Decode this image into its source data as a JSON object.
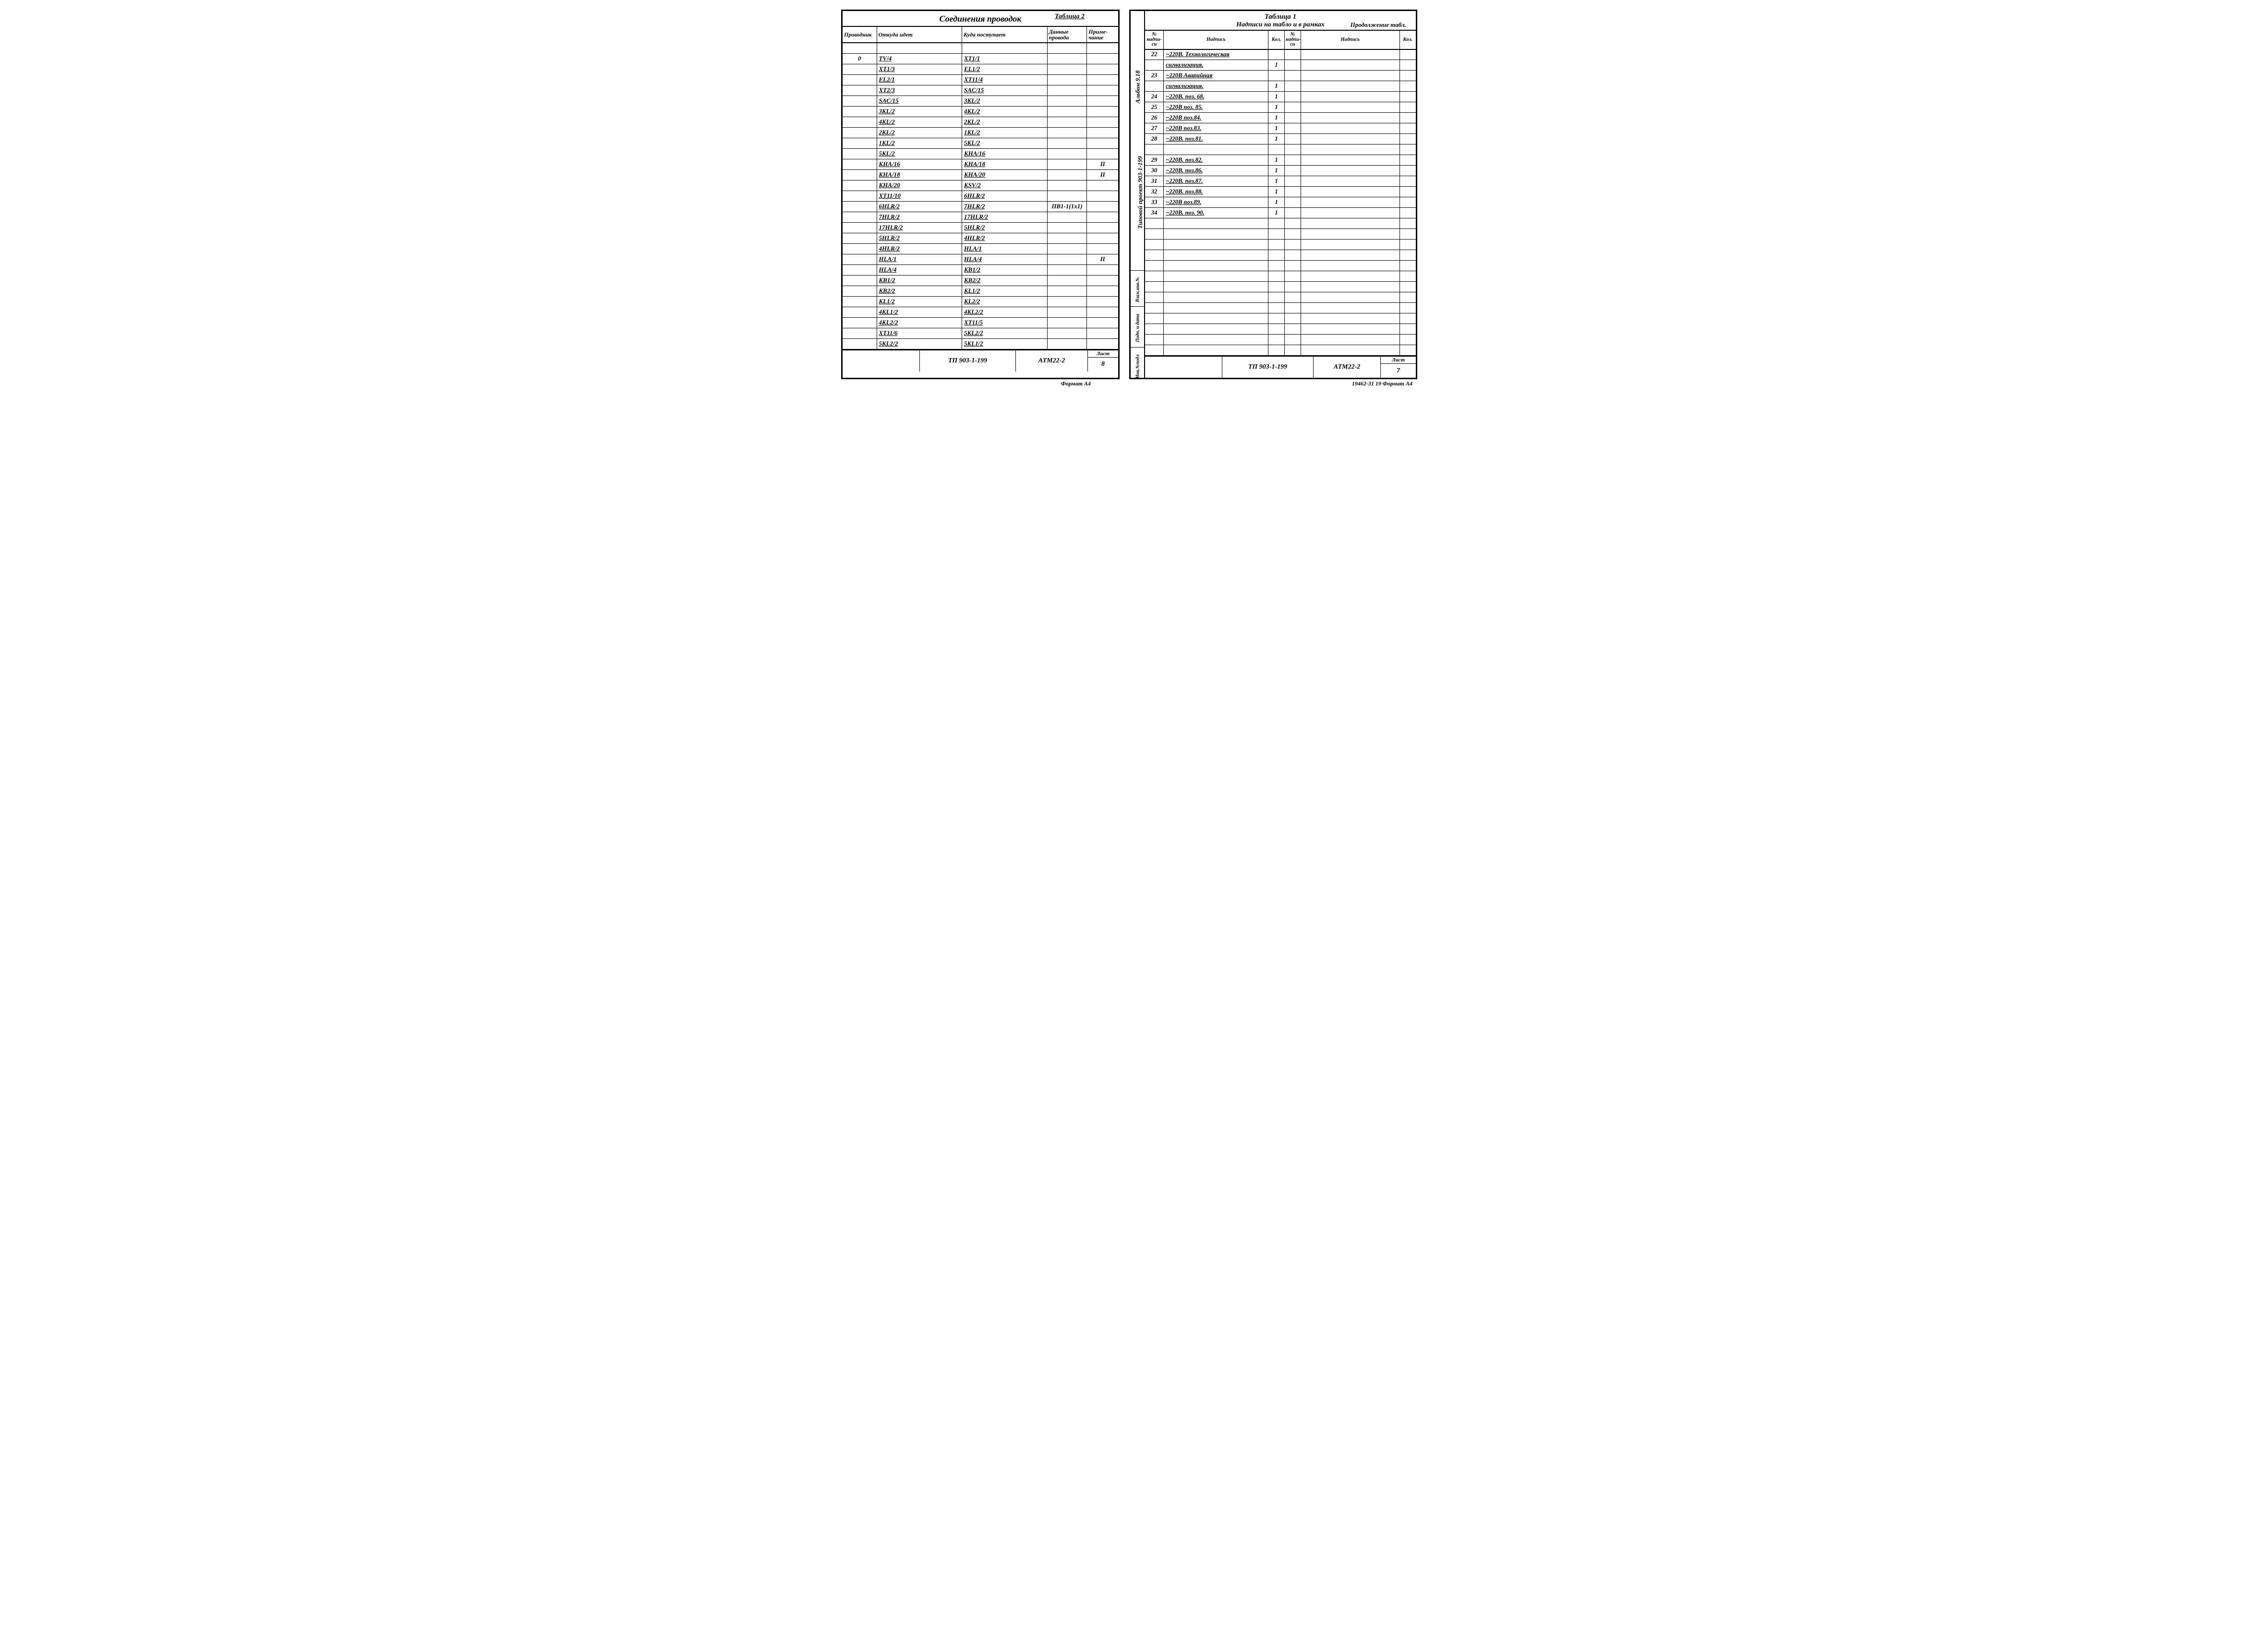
{
  "table2": {
    "tag": "Таблица 2",
    "title": "Соединения проводок",
    "headers": {
      "prov": "Проводник",
      "from": "Откуда идет",
      "to": "Куда поступает",
      "data": "Данные провода",
      "note": "Приме-чание"
    },
    "rows": [
      {
        "prov": "",
        "from": "",
        "to": "",
        "data": "",
        "note": ""
      },
      {
        "prov": "0",
        "from": "TV/4",
        "to": "XT1/1",
        "data": "",
        "note": ""
      },
      {
        "prov": "",
        "from": "XT1/3",
        "to": "EL1/2",
        "data": "",
        "note": ""
      },
      {
        "prov": "",
        "from": "EL2/1",
        "to": "XT11/4",
        "data": "",
        "note": ""
      },
      {
        "prov": "",
        "from": "XT2/3",
        "to": "SAC/15",
        "data": "",
        "note": ""
      },
      {
        "prov": "",
        "from": "SAC/15",
        "to": "3KL/2",
        "data": "",
        "note": ""
      },
      {
        "prov": "",
        "from": "3KL/2",
        "to": "4KL/2",
        "data": "",
        "note": ""
      },
      {
        "prov": "",
        "from": "4KL/2",
        "to": "2KL/2",
        "data": "",
        "note": ""
      },
      {
        "prov": "",
        "from": "2KL/2",
        "to": "1KL/2",
        "data": "",
        "note": ""
      },
      {
        "prov": "",
        "from": "1KL/2",
        "to": "5KL/2",
        "data": "",
        "note": ""
      },
      {
        "prov": "",
        "from": "5KL/2",
        "to": "KHA/16",
        "data": "",
        "note": ""
      },
      {
        "prov": "",
        "from": "KHA/16",
        "to": "KHA/18",
        "data": "",
        "note": "П"
      },
      {
        "prov": "",
        "from": "KHA/18",
        "to": "KHA/20",
        "data": "",
        "note": "П"
      },
      {
        "prov": "",
        "from": "KHA/20",
        "to": "KSV/2",
        "data": "",
        "note": ""
      },
      {
        "prov": "",
        "from": "XT11/10",
        "to": "6HLR/2",
        "data": "",
        "note": ""
      },
      {
        "prov": "",
        "from": "6HLR/2",
        "to": "7HLR/2",
        "data": "ПВ1-1(1х1)",
        "note": ""
      },
      {
        "prov": "",
        "from": "7HLR/2",
        "to": "17HLR/2",
        "data": "",
        "note": ""
      },
      {
        "prov": "",
        "from": "17HLR/2",
        "to": "5HLR/2",
        "data": "",
        "note": ""
      },
      {
        "prov": "",
        "from": "5HLR/2",
        "to": "4HLR/2",
        "data": "",
        "note": ""
      },
      {
        "prov": "",
        "from": "4HLR/2",
        "to": "HLA/1",
        "data": "",
        "note": ""
      },
      {
        "prov": "",
        "from": "HLA/1",
        "to": "HLA/4",
        "data": "",
        "note": "П"
      },
      {
        "prov": "",
        "from": "HLA/4",
        "to": "KB1/2",
        "data": "",
        "note": ""
      },
      {
        "prov": "",
        "from": "KB1/2",
        "to": "KB2/2",
        "data": "",
        "note": ""
      },
      {
        "prov": "",
        "from": "KB2/2",
        "to": "KL1/2",
        "data": "",
        "note": ""
      },
      {
        "prov": "",
        "from": "KL1/2",
        "to": "KL2/2",
        "data": "",
        "note": ""
      },
      {
        "prov": "",
        "from": "4KL1/2",
        "to": "4KL2/2",
        "data": "",
        "note": ""
      },
      {
        "prov": "",
        "from": "4KL2/2",
        "to": "XT11/5",
        "data": "",
        "note": ""
      },
      {
        "prov": "",
        "from": "XT11/6",
        "to": "5KL2/2",
        "data": "",
        "note": ""
      },
      {
        "prov": "",
        "from": "5KL2/2",
        "to": "5KL1/2",
        "data": "",
        "note": ""
      }
    ],
    "footer": {
      "tp": "ТП 903-1-199",
      "atm": "АТМ22-2",
      "listLabel": "Лист",
      "list": "8"
    },
    "format": "Формат А4"
  },
  "side": {
    "labels": [
      "Альбом 9.18",
      "Типовой проект 903-1-199",
      "Взам.инв.№",
      "Подп. и дата",
      "Инв.№подл"
    ]
  },
  "table1": {
    "tag": "Таблица 1",
    "title": "Надписи на табло и в рамках",
    "cont": "Продолжение табл.",
    "headers": {
      "no": "№ надпи-си",
      "lab": "Надпись",
      "kol": "Кол.",
      "no2": "№ надпи-си",
      "lab2": "Надпись",
      "kol2": "Кол."
    },
    "rows": [
      {
        "no": "22",
        "lab": "~220В. Технологическая",
        "kol": "",
        "no2": "",
        "lab2": "",
        "kol2": ""
      },
      {
        "no": "",
        "lab": "сигнализация.",
        "kol": "1",
        "no2": "",
        "lab2": "",
        "kol2": ""
      },
      {
        "no": "23",
        "lab": "~220В Аварийная",
        "kol": "",
        "no2": "",
        "lab2": "",
        "kol2": ""
      },
      {
        "no": "",
        "lab": "сигнализация.",
        "kol": "1",
        "no2": "",
        "lab2": "",
        "kol2": ""
      },
      {
        "no": "24",
        "lab": "~220В.  поз. 68.",
        "kol": "1",
        "no2": "",
        "lab2": "",
        "kol2": ""
      },
      {
        "no": "25",
        "lab": "~220В  поз. 85.",
        "kol": "1",
        "no2": "",
        "lab2": "",
        "kol2": ""
      },
      {
        "no": "26",
        "lab": "~220В  поз.84.",
        "kol": "1",
        "no2": "",
        "lab2": "",
        "kol2": ""
      },
      {
        "no": "27",
        "lab": "~220В  поз.83.",
        "kol": "1",
        "no2": "",
        "lab2": "",
        "kol2": ""
      },
      {
        "no": "28",
        "lab": "~220В. поз.81.",
        "kol": "1",
        "no2": "",
        "lab2": "",
        "kol2": ""
      },
      {
        "no": "",
        "lab": "",
        "kol": "",
        "no2": "",
        "lab2": "",
        "kol2": ""
      },
      {
        "no": "29",
        "lab": "~220В.  поз.82.",
        "kol": "1",
        "no2": "",
        "lab2": "",
        "kol2": ""
      },
      {
        "no": "30",
        "lab": "~220В. поз.86.",
        "kol": "1",
        "no2": "",
        "lab2": "",
        "kol2": ""
      },
      {
        "no": "31",
        "lab": "~220В. поз.87.",
        "kol": "1",
        "no2": "",
        "lab2": "",
        "kol2": ""
      },
      {
        "no": "32",
        "lab": "~220В. поз.88.",
        "kol": "1",
        "no2": "",
        "lab2": "",
        "kol2": ""
      },
      {
        "no": "33",
        "lab": "~220В  поз.89.",
        "kol": "1",
        "no2": "",
        "lab2": "",
        "kol2": ""
      },
      {
        "no": "34",
        "lab": "~220В. поз. 90.",
        "kol": "1",
        "no2": "",
        "lab2": "",
        "kol2": ""
      },
      {
        "no": "",
        "lab": "",
        "kol": "",
        "no2": "",
        "lab2": "",
        "kol2": ""
      },
      {
        "no": "",
        "lab": "",
        "kol": "",
        "no2": "",
        "lab2": "",
        "kol2": ""
      },
      {
        "no": "",
        "lab": "",
        "kol": "",
        "no2": "",
        "lab2": "",
        "kol2": ""
      },
      {
        "no": "",
        "lab": "",
        "kol": "",
        "no2": "",
        "lab2": "",
        "kol2": ""
      },
      {
        "no": "",
        "lab": "",
        "kol": "",
        "no2": "",
        "lab2": "",
        "kol2": ""
      },
      {
        "no": "",
        "lab": "",
        "kol": "",
        "no2": "",
        "lab2": "",
        "kol2": ""
      },
      {
        "no": "",
        "lab": "",
        "kol": "",
        "no2": "",
        "lab2": "",
        "kol2": ""
      },
      {
        "no": "",
        "lab": "",
        "kol": "",
        "no2": "",
        "lab2": "",
        "kol2": ""
      },
      {
        "no": "",
        "lab": "",
        "kol": "",
        "no2": "",
        "lab2": "",
        "kol2": ""
      },
      {
        "no": "",
        "lab": "",
        "kol": "",
        "no2": "",
        "lab2": "",
        "kol2": ""
      },
      {
        "no": "",
        "lab": "",
        "kol": "",
        "no2": "",
        "lab2": "",
        "kol2": ""
      },
      {
        "no": "",
        "lab": "",
        "kol": "",
        "no2": "",
        "lab2": "",
        "kol2": ""
      },
      {
        "no": "",
        "lab": "",
        "kol": "",
        "no2": "",
        "lab2": "",
        "kol2": ""
      }
    ],
    "footer": {
      "tp": "ТП 903-1-199",
      "atm": "АТМ22-2",
      "listLabel": "Лист",
      "list": "7"
    },
    "format": "19462-31  19  Формат А4"
  }
}
